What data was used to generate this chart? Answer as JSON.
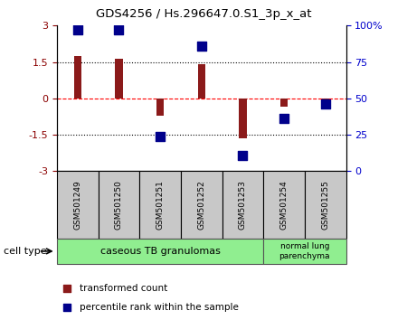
{
  "title": "GDS4256 / Hs.296647.0.S1_3p_x_at",
  "samples": [
    "GSM501249",
    "GSM501250",
    "GSM501251",
    "GSM501252",
    "GSM501253",
    "GSM501254",
    "GSM501255"
  ],
  "transformed_counts": [
    1.75,
    1.65,
    -0.7,
    1.4,
    -1.65,
    -0.35,
    -0.05
  ],
  "percentile_ranks": [
    97,
    97,
    24,
    86,
    11,
    36,
    46
  ],
  "bar_color": "#8B1A1A",
  "dot_color": "#00008B",
  "ylim_left": [
    -3,
    3
  ],
  "ylim_right": [
    0,
    100
  ],
  "left_ticks": [
    -3,
    -1.5,
    0,
    1.5,
    3
  ],
  "right_ticks": [
    0,
    25,
    50,
    75,
    100
  ],
  "right_tick_labels": [
    "0",
    "25",
    "50",
    "75",
    "100%"
  ],
  "group1_label": "caseous TB granulomas",
  "group2_label": "normal lung\nparenchyma",
  "cell_type_label": "cell type",
  "legend1_label": "transformed count",
  "legend2_label": "percentile rank within the sample",
  "group1_color": "#90EE90",
  "group2_color": "#90EE90",
  "sample_box_color": "#C8C8C8",
  "background_color": "#FFFFFF",
  "tick_label_color_left": "#8B0000",
  "tick_label_color_right": "#0000CC",
  "n_group1": 5,
  "n_group2": 2
}
